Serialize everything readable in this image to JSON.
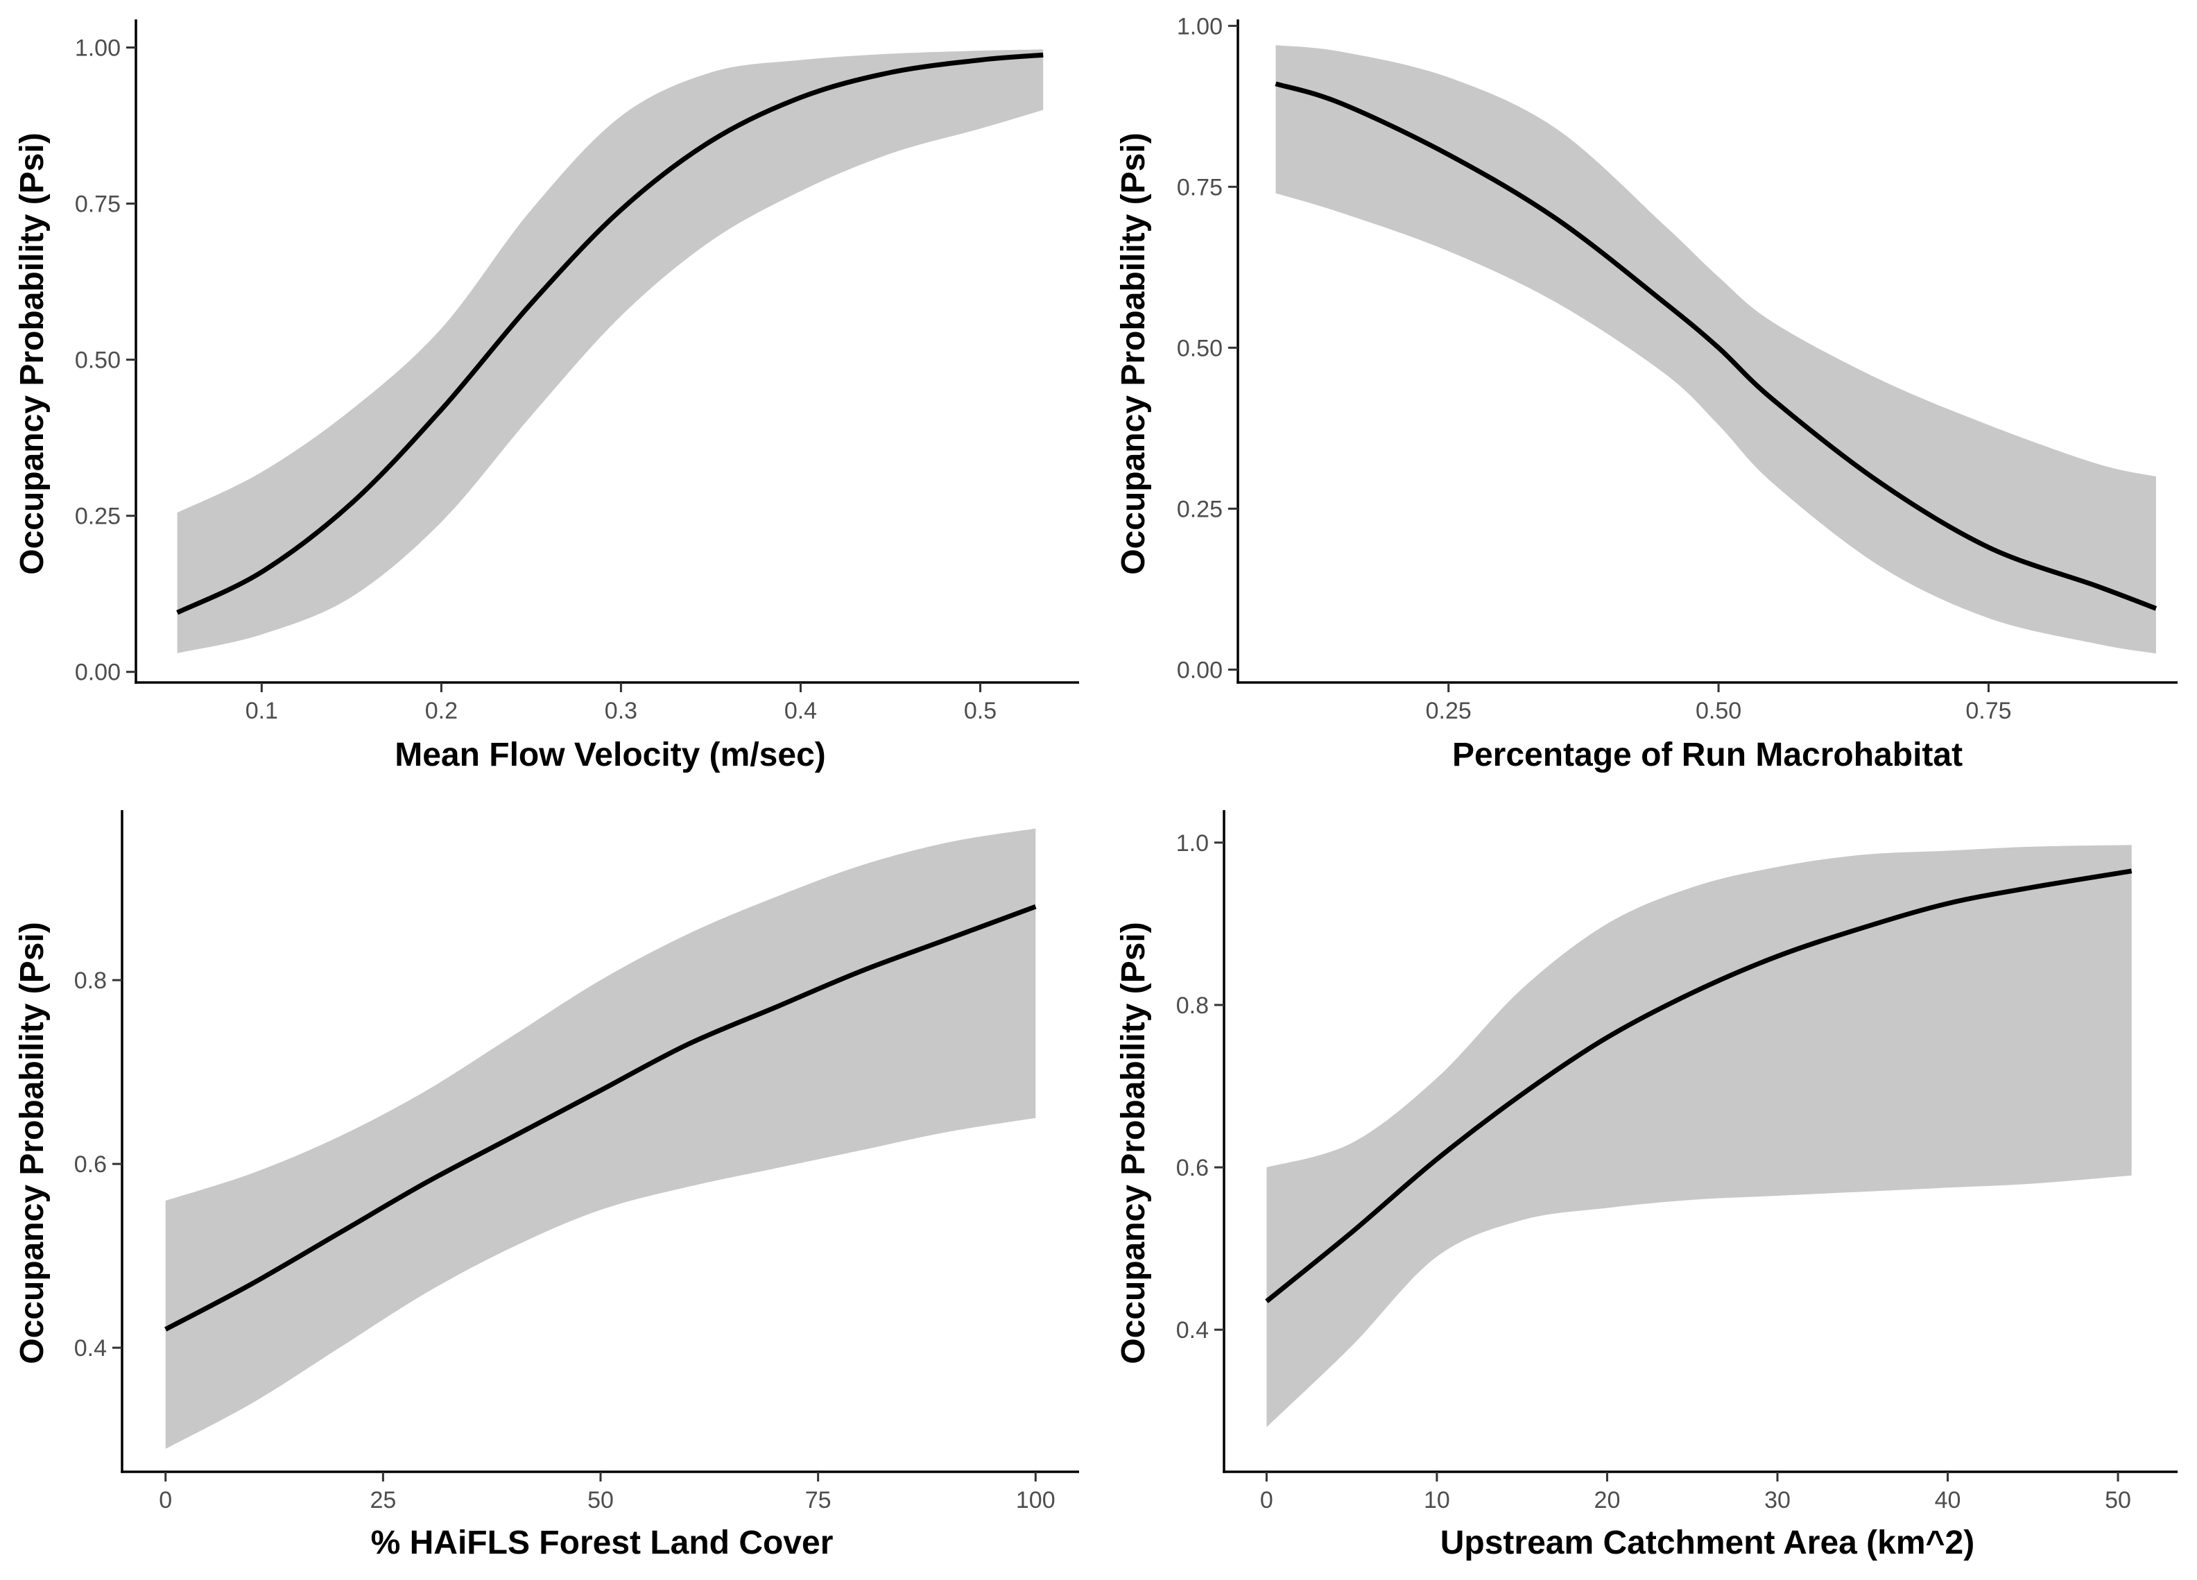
{
  "figure": {
    "colors": {
      "band": "#c8c8c8",
      "line": "#000000",
      "axis": "#000000",
      "tick_text": "#4d4d4d"
    }
  },
  "chart_data": [
    {
      "type": "line",
      "xlabel": "Mean Flow Velocity (m/sec)",
      "ylabel": "Occupancy Probability (Psi)",
      "xlim": [
        0.03,
        0.555
      ],
      "ylim": [
        -0.017,
        1.045
      ],
      "xticks": [
        0.1,
        0.2,
        0.3,
        0.4,
        0.5
      ],
      "xtick_labels": [
        "0.1",
        "0.2",
        "0.3",
        "0.4",
        "0.5"
      ],
      "yticks": [
        0,
        0.25,
        0.5,
        0.75,
        1
      ],
      "ytick_labels": [
        "0.00",
        "0.25",
        "0.50",
        "0.75",
        "1.00"
      ],
      "grid": false,
      "series": [
        {
          "x": [
            0.053,
            0.1,
            0.15,
            0.2,
            0.25,
            0.3,
            0.35,
            0.4,
            0.45,
            0.5,
            0.535
          ],
          "y": [
            0.095,
            0.16,
            0.27,
            0.42,
            0.59,
            0.74,
            0.85,
            0.92,
            0.96,
            0.98,
            0.988
          ],
          "lower": [
            0.03,
            0.06,
            0.12,
            0.24,
            0.41,
            0.57,
            0.69,
            0.77,
            0.83,
            0.87,
            0.9
          ],
          "upper": [
            0.255,
            0.32,
            0.42,
            0.55,
            0.74,
            0.89,
            0.96,
            0.98,
            0.99,
            0.995,
            0.997
          ]
        }
      ]
    },
    {
      "type": "line",
      "xlabel": "Percentage of Run Macrohabitat",
      "ylabel": "Occupancy Probability (Psi)",
      "xlim": [
        0.055,
        0.925
      ],
      "ylim": [
        -0.02,
        1.01
      ],
      "xticks": [
        0.25,
        0.5,
        0.75
      ],
      "xtick_labels": [
        "0.25",
        "0.50",
        "0.75"
      ],
      "yticks": [
        0,
        0.25,
        0.5,
        0.75,
        1
      ],
      "ytick_labels": [
        "0.00",
        "0.25",
        "0.50",
        "0.75",
        "1.00"
      ],
      "grid": false,
      "series": [
        {
          "x": [
            0.09,
            0.15,
            0.25,
            0.35,
            0.45,
            0.5,
            0.55,
            0.65,
            0.75,
            0.85,
            0.905
          ],
          "y": [
            0.91,
            0.88,
            0.8,
            0.7,
            0.57,
            0.5,
            0.42,
            0.29,
            0.19,
            0.13,
            0.095
          ],
          "lower": [
            0.74,
            0.71,
            0.65,
            0.57,
            0.46,
            0.38,
            0.29,
            0.16,
            0.08,
            0.04,
            0.025
          ],
          "upper": [
            0.97,
            0.96,
            0.92,
            0.84,
            0.69,
            0.61,
            0.54,
            0.45,
            0.38,
            0.32,
            0.3
          ]
        }
      ]
    },
    {
      "type": "line",
      "xlabel": "% HAiFLS Forest Land Cover",
      "ylabel": "Occupancy Probability (Psi)",
      "xlim": [
        -5,
        105
      ],
      "ylim": [
        0.265,
        0.985
      ],
      "xticks": [
        0,
        25,
        50,
        75,
        100
      ],
      "xtick_labels": [
        "0",
        "25",
        "50",
        "75",
        "100"
      ],
      "yticks": [
        0.4,
        0.6,
        0.8
      ],
      "ytick_labels": [
        "0.4",
        "0.6",
        "0.8"
      ],
      "grid": false,
      "series": [
        {
          "x": [
            0,
            10,
            20,
            30,
            40,
            50,
            60,
            70,
            80,
            90,
            100
          ],
          "y": [
            0.42,
            0.47,
            0.525,
            0.58,
            0.63,
            0.68,
            0.73,
            0.77,
            0.81,
            0.845,
            0.88
          ],
          "lower": [
            0.29,
            0.34,
            0.4,
            0.46,
            0.51,
            0.55,
            0.575,
            0.595,
            0.615,
            0.635,
            0.65
          ],
          "upper": [
            0.56,
            0.59,
            0.63,
            0.68,
            0.74,
            0.8,
            0.85,
            0.89,
            0.925,
            0.95,
            0.965
          ]
        }
      ]
    },
    {
      "type": "line",
      "xlabel": "Upstream Catchment Area (km^2)",
      "ylabel": "Occupancy Probability (Psi)",
      "xlim": [
        -2.5,
        53.5
      ],
      "ylim": [
        0.225,
        1.04
      ],
      "xticks": [
        0,
        10,
        20,
        30,
        40,
        50
      ],
      "xtick_labels": [
        "0",
        "10",
        "20",
        "30",
        "40",
        "50"
      ],
      "yticks": [
        0.4,
        0.6,
        0.8,
        1.0
      ],
      "ytick_labels": [
        "0.4",
        "0.6",
        "0.8",
        "1.0"
      ],
      "grid": false,
      "series": [
        {
          "x": [
            0,
            5,
            10,
            15,
            20,
            25,
            30,
            35,
            40,
            45,
            50.8
          ],
          "y": [
            0.435,
            0.52,
            0.61,
            0.69,
            0.76,
            0.815,
            0.86,
            0.895,
            0.925,
            0.945,
            0.965
          ],
          "lower": [
            0.28,
            0.38,
            0.49,
            0.535,
            0.55,
            0.56,
            0.565,
            0.57,
            0.575,
            0.58,
            0.59
          ],
          "upper": [
            0.6,
            0.63,
            0.71,
            0.82,
            0.9,
            0.945,
            0.97,
            0.985,
            0.99,
            0.995,
            0.997
          ]
        }
      ]
    }
  ]
}
